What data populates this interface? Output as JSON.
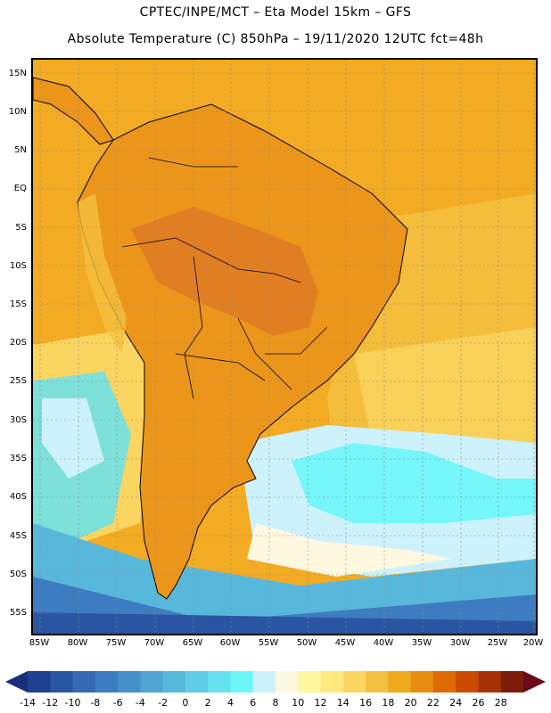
{
  "title_line1": "CPTEC/INPE/MCT –  Eta Model 15km – GFS",
  "title_line2": "Absolute Temperature (C) 850hPa – 19/11/2020 12UTC fct=48h",
  "lat_labels": [
    "15N",
    "10N",
    "5N",
    "EQ",
    "5S",
    "10S",
    "15S",
    "20S",
    "25S",
    "30S",
    "35S",
    "40S",
    "45S",
    "50S",
    "55S"
  ],
  "lon_labels": [
    "85W",
    "80W",
    "75W",
    "70W",
    "65W",
    "60W",
    "55W",
    "50W",
    "45W",
    "40W",
    "35W",
    "30W",
    "25W",
    "20W"
  ],
  "colorbar": {
    "labels": [
      "-14",
      "-12",
      "-10",
      "-8",
      "-6",
      "-4",
      "-2",
      "0",
      "2",
      "4",
      "6",
      "8",
      "10",
      "12",
      "14",
      "16",
      "18",
      "20",
      "22",
      "24",
      "26",
      "28"
    ],
    "colors": [
      "#1f3f8f",
      "#2a55a2",
      "#3469b3",
      "#3d7cc0",
      "#4690c9",
      "#4fa4d2",
      "#58b8dc",
      "#5fcde6",
      "#66e2ee",
      "#6cf6f8",
      "#cdf2fc",
      "#fff8e1",
      "#fff7a0",
      "#ffe880",
      "#fad560",
      "#f5c040",
      "#f0aa1d",
      "#e88c10",
      "#df6a05",
      "#cc4a00",
      "#a83205",
      "#7c1c0a"
    ],
    "left_arrow_color": "#1a2f7a",
    "right_arrow_color": "#6a0a1a"
  },
  "map": {
    "ocean_warm_color": "#f2ab22",
    "land_color": "#eb961a",
    "hot_core_color": "#df7a24",
    "coastline_color": "#000000"
  }
}
